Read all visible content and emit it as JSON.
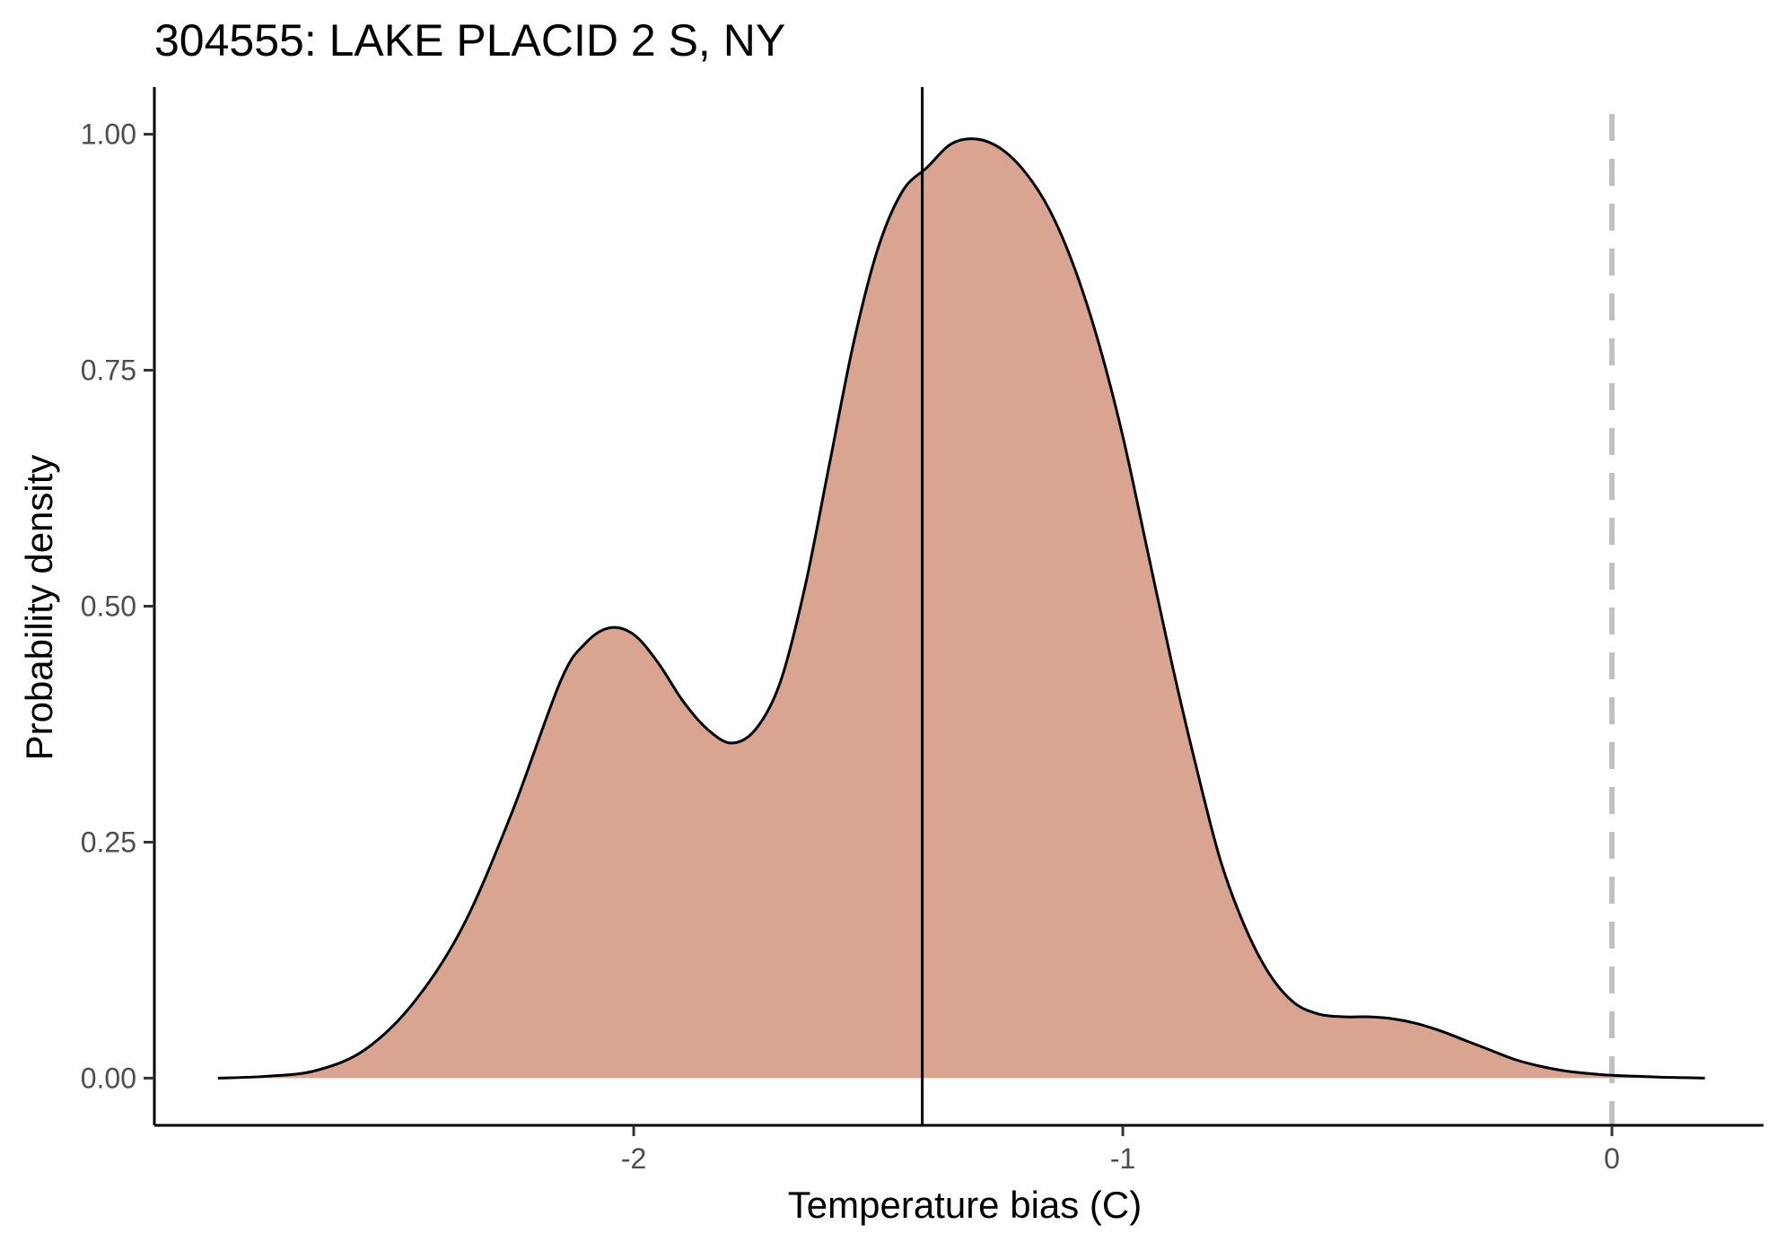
{
  "chart_data": {
    "type": "area",
    "title": "304555: LAKE PLACID 2 S, NY",
    "xlabel": "Temperature bias (C)",
    "ylabel": "Probability density",
    "xlim": [
      -2.98,
      0.31
    ],
    "ylim": [
      -0.05,
      1.05
    ],
    "x_ticks": [
      -2,
      -1,
      0
    ],
    "x_tick_labels": [
      "-2",
      "-1",
      "0"
    ],
    "y_ticks": [
      0,
      0.25,
      0.5,
      0.75,
      1.0
    ],
    "y_tick_labels": [
      "0.00",
      "0.25",
      "0.50",
      "0.75",
      "1.00"
    ],
    "grid": false,
    "fill_color": "#d9a490",
    "line_color": "#000000",
    "reference_lines": [
      {
        "x": -1.41,
        "style": "solid",
        "color": "#000000"
      },
      {
        "x": 0,
        "style": "dashed",
        "color": "#c0c0c0"
      }
    ],
    "series": [
      {
        "x": [
          -2.85,
          -2.75,
          -2.65,
          -2.55,
          -2.45,
          -2.35,
          -2.25,
          -2.15,
          -2.1,
          -2.05,
          -2.0,
          -1.95,
          -1.9,
          -1.85,
          -1.8,
          -1.75,
          -1.7,
          -1.65,
          -1.6,
          -1.55,
          -1.5,
          -1.45,
          -1.4,
          -1.35,
          -1.3,
          -1.25,
          -1.2,
          -1.15,
          -1.1,
          -1.05,
          -1.0,
          -0.95,
          -0.9,
          -0.85,
          -0.8,
          -0.75,
          -0.7,
          -0.65,
          -0.6,
          -0.55,
          -0.5,
          -0.45,
          -0.4,
          -0.35,
          -0.3,
          -0.25,
          -0.2,
          -0.15,
          -0.1,
          -0.05,
          0.0,
          0.05,
          0.1,
          0.15,
          0.19
        ],
        "y": [
          0.0,
          0.002,
          0.008,
          0.03,
          0.08,
          0.16,
          0.28,
          0.42,
          0.46,
          0.477,
          0.47,
          0.44,
          0.4,
          0.37,
          0.355,
          0.37,
          0.42,
          0.52,
          0.65,
          0.78,
          0.88,
          0.94,
          0.965,
          0.99,
          0.995,
          0.985,
          0.96,
          0.92,
          0.86,
          0.78,
          0.68,
          0.56,
          0.44,
          0.33,
          0.23,
          0.16,
          0.11,
          0.08,
          0.068,
          0.065,
          0.065,
          0.063,
          0.058,
          0.05,
          0.04,
          0.03,
          0.02,
          0.013,
          0.008,
          0.005,
          0.003,
          0.002,
          0.001,
          0.0005,
          0.0
        ]
      }
    ]
  }
}
